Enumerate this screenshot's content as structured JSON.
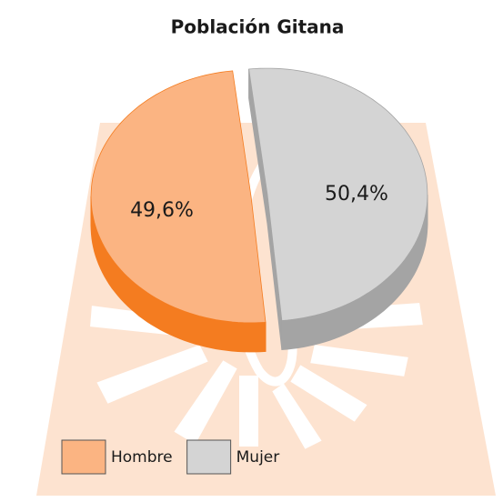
{
  "chart_data": {
    "type": "pie",
    "title": "Población Gitana",
    "categories": [
      "Hombre",
      "Mujer"
    ],
    "values": [
      49.6,
      50.4
    ],
    "value_labels": [
      "49,6%",
      "50,4%"
    ],
    "colors": [
      "#fbb482",
      "#d4d4d4"
    ],
    "side_colors": [
      "#f47c20",
      "#a4a4a4"
    ],
    "legend": "bottom-left"
  }
}
